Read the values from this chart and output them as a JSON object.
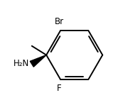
{
  "bg_color": "#ffffff",
  "line_color": "#000000",
  "line_width": 1.4,
  "font_size_label": 8.5,
  "br_label": "Br",
  "f_label": "F",
  "nh2_label": "H₂N"
}
